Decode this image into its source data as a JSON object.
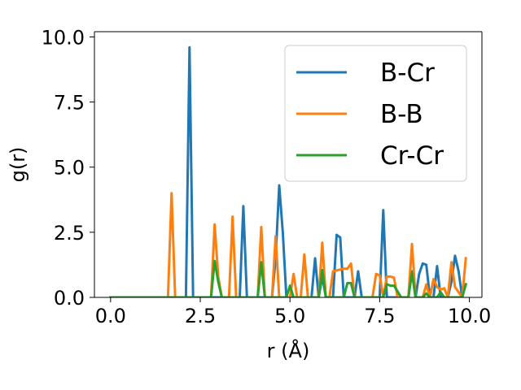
{
  "chart_data": {
    "type": "line",
    "xlabel": "r (Å)",
    "ylabel": "g(r)",
    "xlim": [
      -0.45,
      10.35
    ],
    "ylim": [
      0,
      10.2
    ],
    "x_ticks": [
      "0.0",
      "2.5",
      "5.0",
      "7.5",
      "10.0"
    ],
    "y_ticks": [
      "0.0",
      "2.5",
      "5.0",
      "7.5",
      "10.0"
    ],
    "grid": false,
    "legend_position": "upper-right",
    "series": [
      {
        "name": "B-Cr",
        "color": "#1f77b4",
        "x": [
          0.0,
          0.5,
          1.0,
          1.5,
          2.0,
          2.1,
          2.2,
          2.3,
          2.4,
          3.0,
          3.6,
          3.7,
          3.8,
          4.5,
          4.6,
          4.7,
          4.8,
          4.9,
          5.5,
          5.6,
          5.7,
          5.8,
          5.9,
          6.0,
          6.2,
          6.3,
          6.4,
          6.5,
          6.8,
          6.9,
          7.0,
          7.5,
          7.6,
          7.7,
          8.0,
          8.2,
          8.3,
          8.4,
          8.5,
          8.6,
          8.7,
          8.8,
          8.9,
          9.0,
          9.1,
          9.2,
          9.3,
          9.4,
          9.5,
          9.6,
          9.7,
          9.8,
          9.9
        ],
        "y": [
          0.0,
          0.0,
          0.0,
          0.0,
          0.0,
          0.0,
          9.6,
          0.0,
          0.0,
          0.0,
          0.0,
          3.5,
          0.0,
          0.0,
          1.5,
          4.3,
          2.5,
          0.0,
          0.0,
          0.0,
          1.5,
          0.0,
          0.8,
          0.0,
          0.0,
          2.4,
          2.3,
          0.0,
          0.0,
          1.0,
          0.0,
          0.0,
          3.35,
          0.0,
          0.0,
          0.0,
          0.0,
          1.0,
          0.0,
          0.9,
          1.3,
          1.25,
          0.0,
          0.0,
          1.2,
          0.0,
          0.0,
          0.0,
          0.6,
          1.6,
          1.0,
          0.0,
          0.5
        ]
      },
      {
        "name": "B-B",
        "color": "#ff7f0e",
        "x": [
          0.0,
          0.5,
          1.0,
          1.5,
          1.6,
          1.7,
          1.8,
          1.9,
          2.8,
          2.9,
          3.0,
          3.1,
          3.3,
          3.4,
          3.5,
          3.6,
          4.1,
          4.2,
          4.3,
          4.5,
          4.6,
          4.7,
          5.0,
          5.1,
          5.2,
          5.3,
          5.4,
          5.5,
          5.7,
          5.8,
          5.9,
          6.0,
          6.1,
          6.2,
          6.5,
          6.6,
          6.7,
          6.8,
          6.9,
          7.3,
          7.4,
          7.5,
          7.6,
          7.7,
          7.8,
          7.9,
          8.0,
          8.1,
          8.2,
          8.3,
          8.4,
          8.5,
          8.6,
          8.7,
          8.8,
          8.9,
          9.0,
          9.1,
          9.2,
          9.3,
          9.4,
          9.5,
          9.6,
          9.7,
          9.8,
          9.9
        ],
        "y": [
          0.0,
          0.0,
          0.0,
          0.0,
          0.0,
          4.0,
          0.0,
          0.0,
          0.0,
          2.8,
          0.8,
          0.0,
          0.0,
          3.1,
          0.0,
          0.0,
          0.0,
          2.7,
          0.0,
          0.0,
          2.35,
          0.0,
          0.0,
          0.9,
          0.0,
          0.0,
          1.65,
          0.0,
          0.0,
          0.0,
          2.1,
          0.0,
          0.0,
          1.0,
          1.1,
          1.1,
          1.3,
          0.0,
          0.0,
          0.0,
          0.9,
          0.85,
          0.0,
          0.8,
          0.8,
          0.75,
          0.0,
          0.0,
          0.0,
          0.0,
          2.05,
          0.0,
          0.0,
          0.0,
          0.5,
          0.0,
          0.7,
          0.4,
          0.3,
          0.35,
          0.0,
          1.35,
          0.4,
          0.2,
          0.0,
          1.5
        ]
      },
      {
        "name": "Cr-Cr",
        "color": "#2ca02c",
        "x": [
          0.0,
          0.5,
          1.0,
          1.5,
          2.0,
          2.5,
          2.8,
          2.9,
          3.0,
          3.1,
          3.2,
          4.1,
          4.2,
          4.3,
          4.4,
          4.9,
          5.0,
          5.1,
          5.2,
          5.8,
          5.9,
          6.0,
          6.1,
          6.5,
          6.6,
          6.7,
          6.8,
          7.0,
          7.6,
          7.7,
          7.8,
          7.9,
          8.1,
          8.2,
          8.3,
          8.4,
          8.5,
          8.6,
          8.7,
          8.8,
          8.9,
          9.0,
          9.1,
          9.2,
          9.3,
          9.4,
          9.5,
          9.6,
          9.7,
          9.8,
          9.9
        ],
        "y": [
          0.0,
          0.0,
          0.0,
          0.0,
          0.0,
          0.0,
          0.0,
          1.4,
          0.6,
          0.0,
          0.0,
          0.0,
          1.35,
          0.0,
          0.0,
          0.0,
          0.45,
          0.0,
          0.0,
          0.0,
          1.05,
          0.0,
          0.0,
          0.0,
          0.55,
          0.55,
          0.0,
          0.0,
          0.0,
          0.5,
          0.45,
          0.45,
          0.0,
          0.0,
          0.0,
          0.95,
          0.0,
          0.0,
          0.0,
          0.15,
          0.0,
          0.0,
          0.0,
          0.2,
          0.0,
          0.0,
          0.0,
          0.0,
          0.0,
          0.0,
          0.5
        ]
      }
    ]
  }
}
